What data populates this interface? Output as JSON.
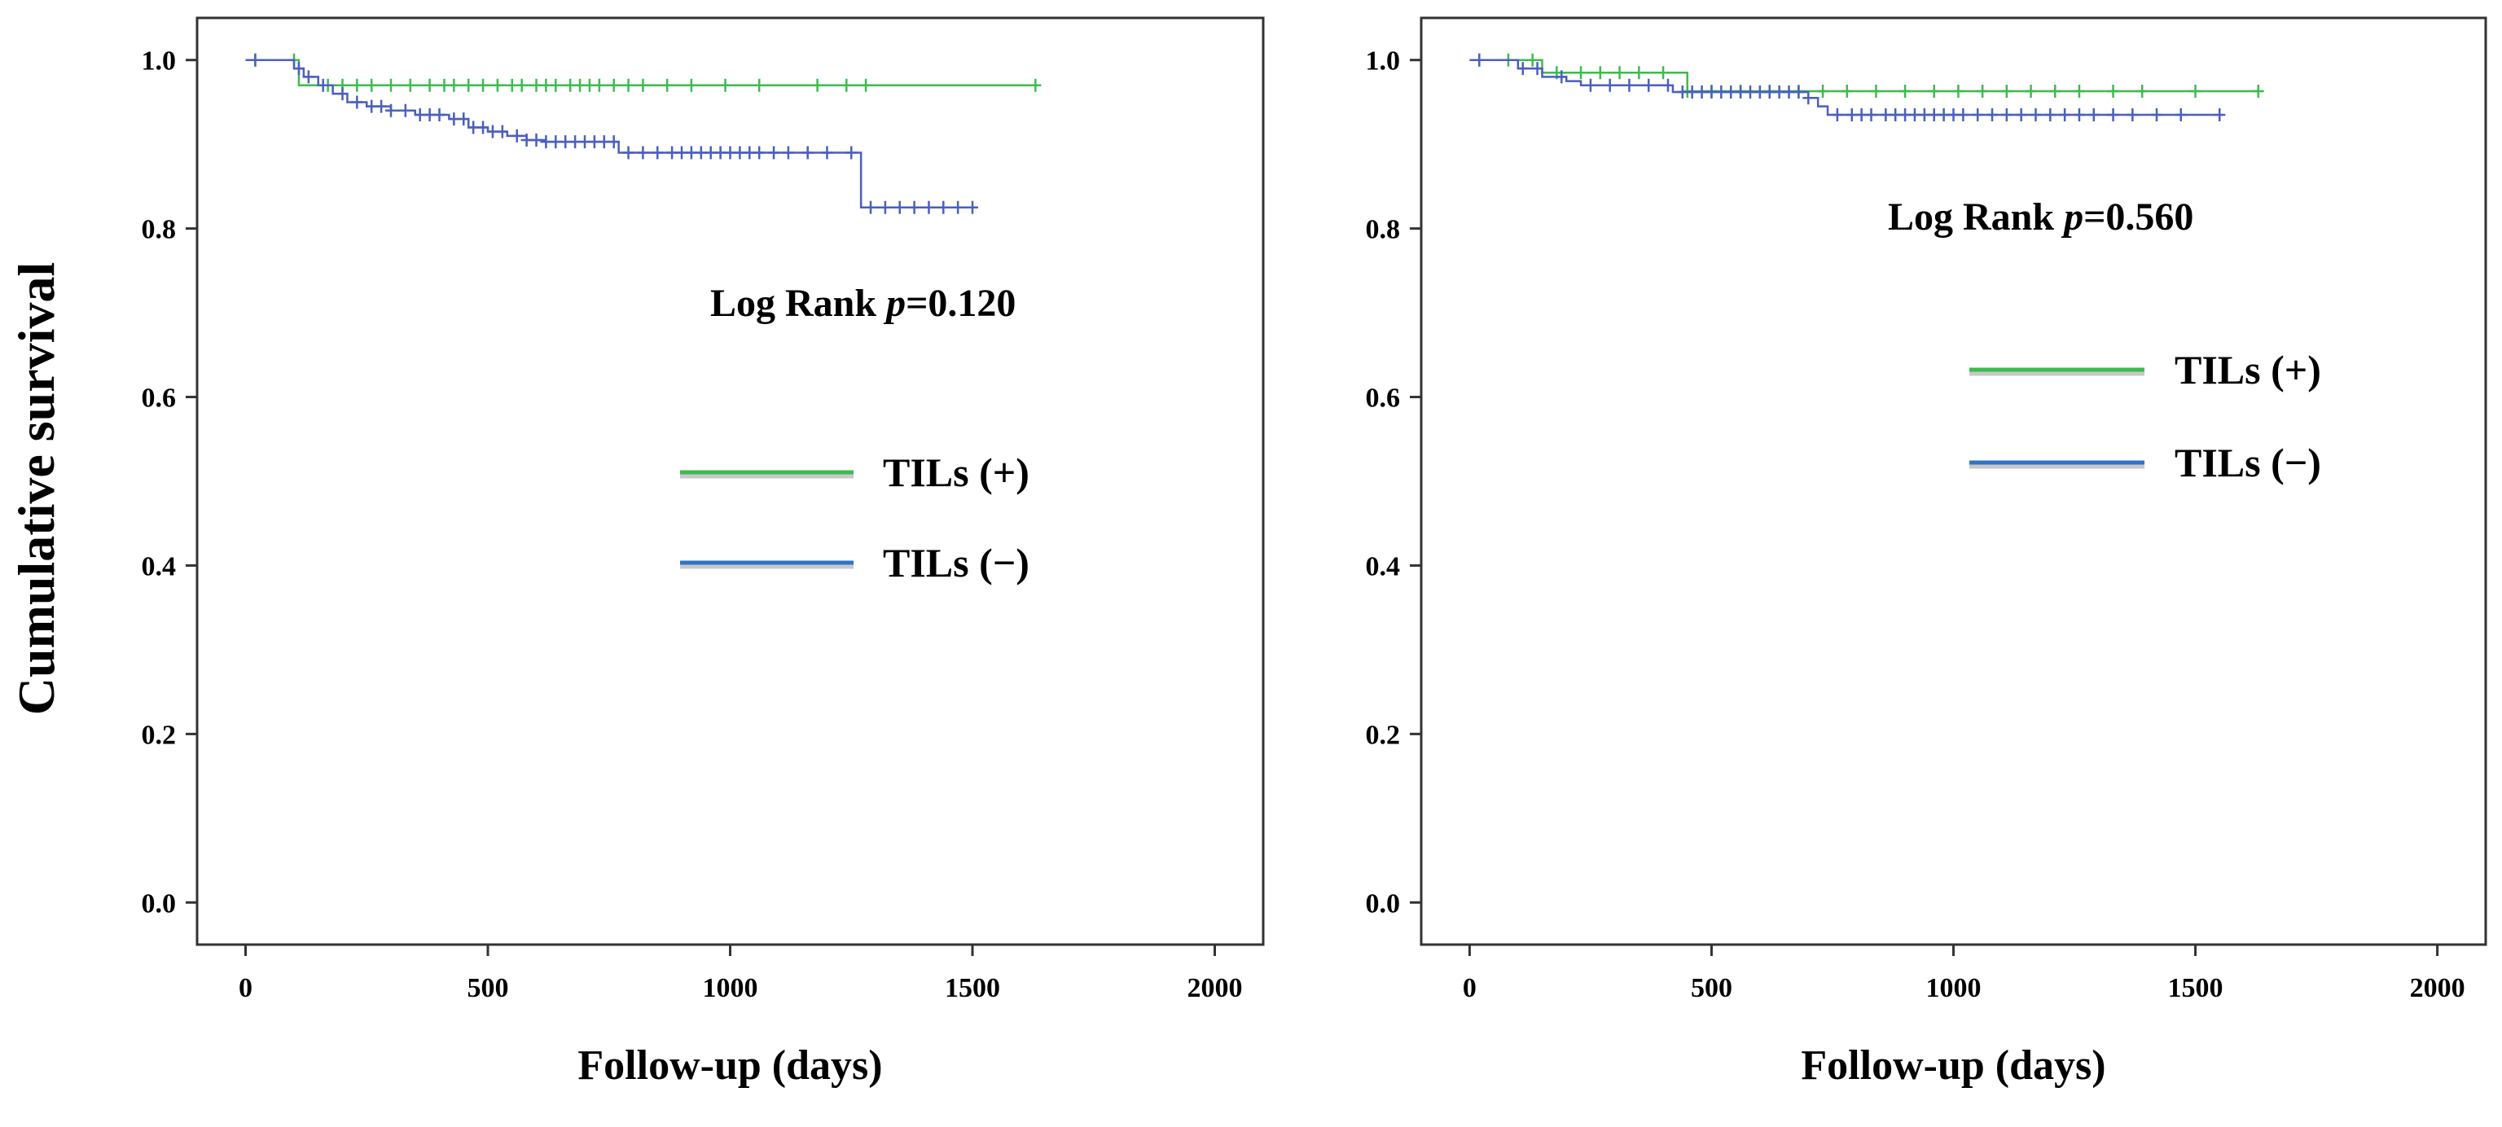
{
  "figure": {
    "ylabel": "Cumulative survival",
    "colors": {
      "tils_pos": "#3dbb4e",
      "tils_neg": "#4a5fbe",
      "legend_neg": "#2e74c9",
      "frame": "#333333"
    }
  },
  "chart_data": [
    {
      "type": "line",
      "step": true,
      "xlabel": "Follow-up (days)",
      "ylabel": "Cumulative survival",
      "xlim": [
        -100,
        2100
      ],
      "ylim": [
        -0.05,
        1.05
      ],
      "xticks": [
        0,
        500,
        1000,
        1500,
        2000
      ],
      "xtick_labels": [
        "0",
        "500",
        "1000",
        "1500",
        "2000"
      ],
      "yticks": [
        0.0,
        0.2,
        0.4,
        0.6,
        0.8,
        1.0
      ],
      "ytick_labels": [
        "0.0",
        "0.2",
        "0.4",
        "0.6",
        "0.8",
        "1.0"
      ],
      "annotation": {
        "prefix": "Log Rank ",
        "p_symbol": "p",
        "suffix": "=0.120"
      },
      "legend": {
        "placement": "center-right",
        "entries": [
          "TILs (+)",
          "TILs (−)"
        ]
      },
      "series": [
        {
          "name": "TILs (+)",
          "color": "#3dbb4e",
          "steps": [
            [
              0,
              1.0
            ],
            [
              110,
              0.97
            ],
            [
              1630,
              0.97
            ]
          ],
          "censored": [
            20,
            100,
            170,
            200,
            230,
            260,
            300,
            340,
            380,
            410,
            430,
            460,
            490,
            520,
            550,
            570,
            600,
            620,
            640,
            670,
            690,
            710,
            730,
            760,
            790,
            820,
            870,
            920,
            990,
            1060,
            1180,
            1240,
            1280,
            1630
          ]
        },
        {
          "name": "TILs (−)",
          "color": "#4a5fbe",
          "steps": [
            [
              0,
              1.0
            ],
            [
              100,
              0.99
            ],
            [
              120,
              0.98
            ],
            [
              150,
              0.97
            ],
            [
              180,
              0.96
            ],
            [
              210,
              0.95
            ],
            [
              250,
              0.945
            ],
            [
              300,
              0.94
            ],
            [
              350,
              0.935
            ],
            [
              420,
              0.93
            ],
            [
              460,
              0.92
            ],
            [
              500,
              0.915
            ],
            [
              540,
              0.91
            ],
            [
              580,
              0.905
            ],
            [
              620,
              0.903
            ],
            [
              770,
              0.89
            ],
            [
              1270,
              0.825
            ],
            [
              1510,
              0.825
            ]
          ],
          "censored": [
            20,
            110,
            130,
            160,
            200,
            230,
            260,
            280,
            300,
            330,
            360,
            380,
            400,
            430,
            450,
            470,
            490,
            510,
            530,
            560,
            580,
            600,
            620,
            640,
            660,
            680,
            700,
            720,
            740,
            760,
            790,
            820,
            850,
            880,
            900,
            920,
            940,
            960,
            980,
            1000,
            1020,
            1040,
            1060,
            1090,
            1120,
            1160,
            1200,
            1250,
            1290,
            1320,
            1350,
            1380,
            1410,
            1440,
            1470,
            1500
          ]
        }
      ]
    },
    {
      "type": "line",
      "step": true,
      "xlabel": "Follow-up (days)",
      "ylabel": "",
      "xlim": [
        -100,
        2100
      ],
      "ylim": [
        -0.05,
        1.05
      ],
      "xticks": [
        0,
        500,
        1000,
        1500,
        2000
      ],
      "xtick_labels": [
        "0",
        "500",
        "1000",
        "1500",
        "2000"
      ],
      "yticks": [
        0.0,
        0.2,
        0.4,
        0.6,
        0.8,
        1.0
      ],
      "ytick_labels": [
        "0.0",
        "0.2",
        "0.4",
        "0.6",
        "0.8",
        "1.0"
      ],
      "annotation": {
        "prefix": "Log Rank ",
        "p_symbol": "p",
        "suffix": "=0.560"
      },
      "legend": {
        "placement": "top-right",
        "entries": [
          "TILs (+)",
          "TILs (−)"
        ]
      },
      "series": [
        {
          "name": "TILs (+)",
          "color": "#3dbb4e",
          "steps": [
            [
              0,
              1.0
            ],
            [
              150,
              0.985
            ],
            [
              450,
              0.963
            ],
            [
              1630,
              0.963
            ]
          ],
          "censored": [
            20,
            80,
            130,
            180,
            230,
            270,
            310,
            350,
            400,
            450,
            500,
            560,
            620,
            680,
            730,
            780,
            840,
            900,
            960,
            1010,
            1060,
            1110,
            1160,
            1210,
            1260,
            1330,
            1390,
            1500,
            1630
          ]
        },
        {
          "name": "TILs (−)",
          "color": "#4a5fbe",
          "steps": [
            [
              0,
              1.0
            ],
            [
              100,
              0.99
            ],
            [
              150,
              0.98
            ],
            [
              200,
              0.975
            ],
            [
              230,
              0.97
            ],
            [
              420,
              0.962
            ],
            [
              700,
              0.955
            ],
            [
              720,
              0.945
            ],
            [
              740,
              0.935
            ],
            [
              1550,
              0.935
            ]
          ],
          "censored": [
            20,
            110,
            140,
            190,
            250,
            290,
            330,
            370,
            410,
            440,
            460,
            480,
            500,
            520,
            540,
            560,
            580,
            600,
            620,
            640,
            660,
            680,
            700,
            760,
            790,
            810,
            830,
            860,
            880,
            900,
            920,
            940,
            960,
            980,
            1000,
            1020,
            1050,
            1080,
            1110,
            1140,
            1170,
            1200,
            1230,
            1260,
            1290,
            1330,
            1370,
            1420,
            1470,
            1550
          ]
        }
      ]
    }
  ]
}
